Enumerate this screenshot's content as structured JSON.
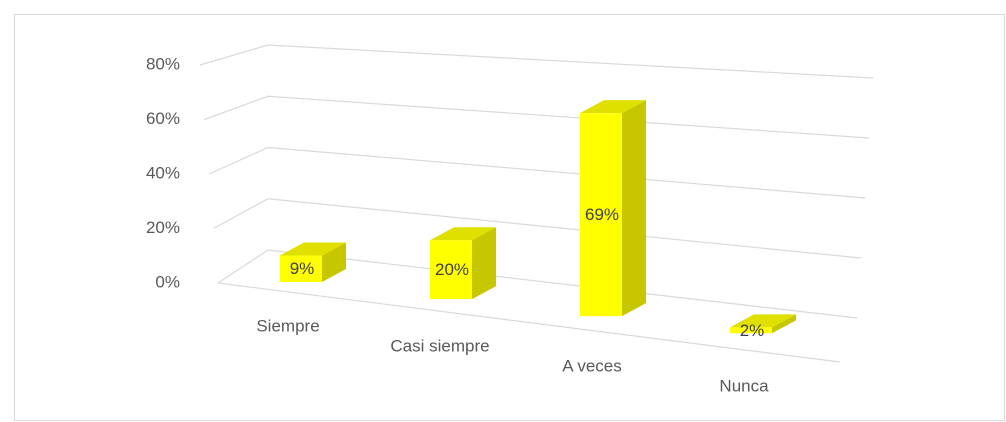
{
  "chart_data": {
    "type": "bar3d",
    "categories": [
      "Siempre",
      "Casi siempre",
      "A veces",
      "Nunca"
    ],
    "values": [
      9,
      20,
      69,
      2
    ],
    "value_labels": [
      "9%",
      "20%",
      "69%",
      "2%"
    ],
    "color": "#ffff00",
    "ylim": [
      0,
      80
    ],
    "yticks": [
      {
        "value": 0,
        "label": "0%"
      },
      {
        "value": 20,
        "label": "20%"
      },
      {
        "value": 40,
        "label": "40%"
      },
      {
        "value": 60,
        "label": "60%"
      },
      {
        "value": 80,
        "label": "80%"
      }
    ],
    "grid": true
  }
}
